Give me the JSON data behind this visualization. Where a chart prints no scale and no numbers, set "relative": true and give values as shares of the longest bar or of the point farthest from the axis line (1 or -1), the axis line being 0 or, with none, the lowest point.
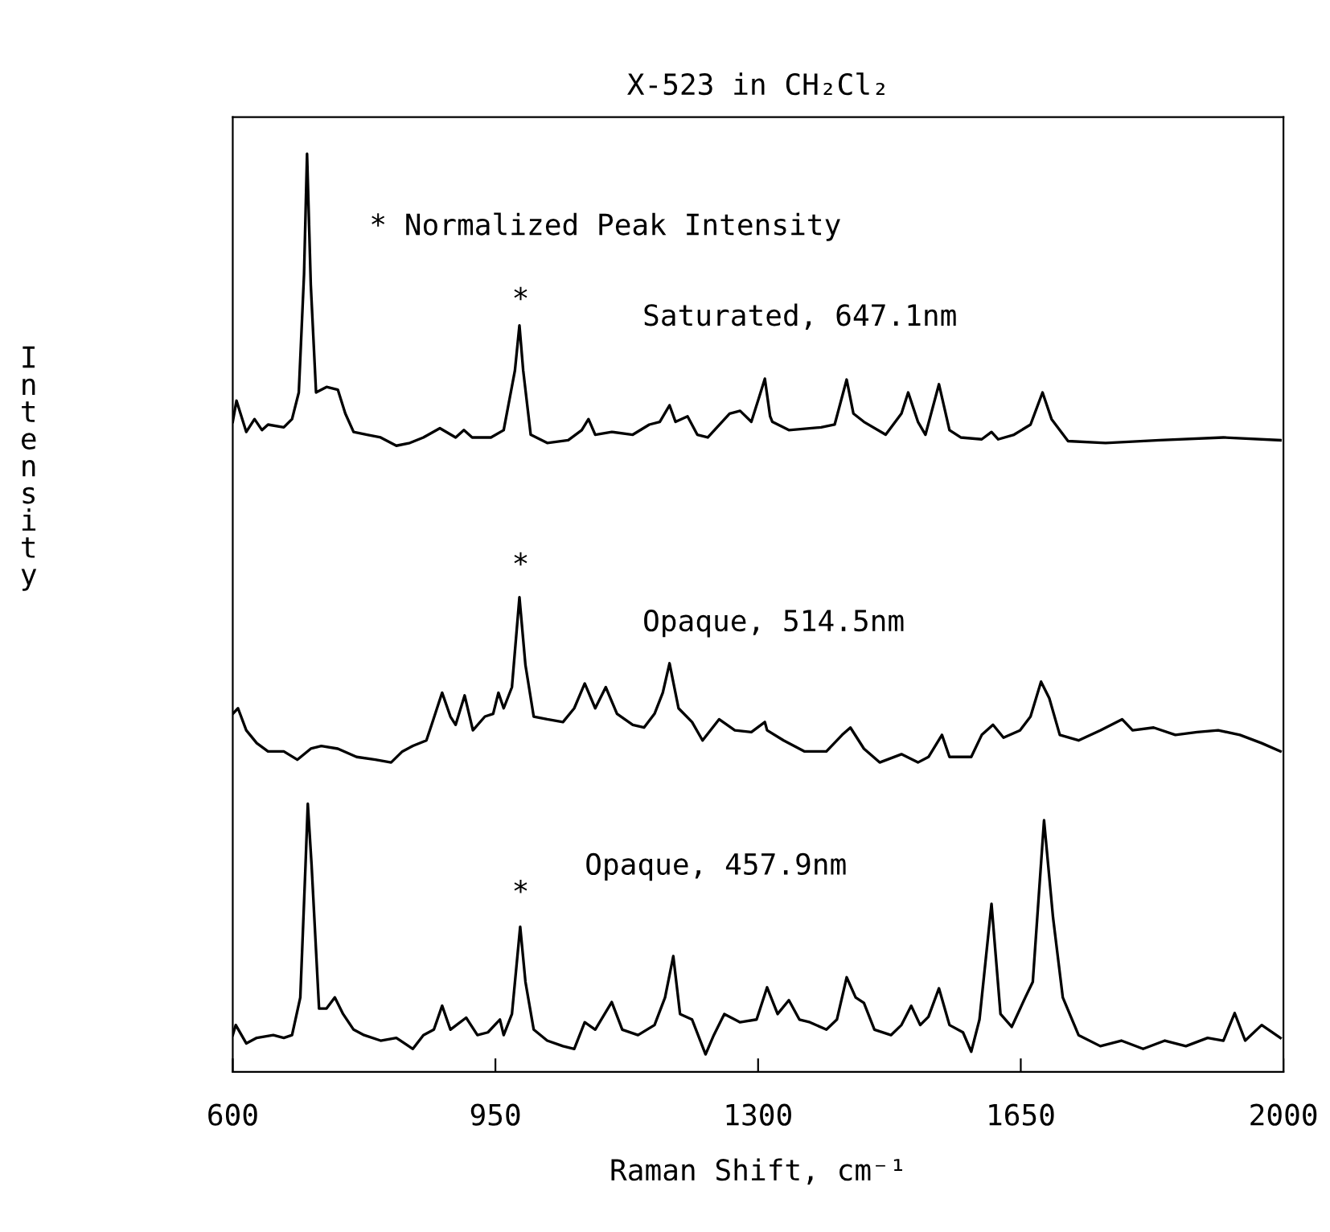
{
  "chart_data": {
    "type": "line",
    "title": "X-523 in CH₂Cl₂",
    "xlabel": "Raman Shift, cm⁻¹",
    "ylabel": "Intensity",
    "relative": true,
    "xlim": [
      600,
      2000
    ],
    "xticks": [
      600,
      950,
      1300,
      1650,
      2000
    ],
    "grid": false,
    "legend": false,
    "marker": "none",
    "line_style": "solid",
    "annotations": [
      "* Normalized Peak Intensity",
      "*",
      "*",
      "*"
    ],
    "series": [
      {
        "name": "Saturated, 647.1nm",
        "color": "#000000",
        "x": [
          600,
          605,
          618,
          629,
          639,
          647,
          668,
          679,
          688,
          695,
          699,
          704,
          711,
          725,
          740,
          750,
          761,
          779,
          797,
          818,
          836,
          854,
          876,
          897,
          908,
          919,
          944,
          961,
          976,
          982,
          987,
          997,
          1019,
          1047,
          1065,
          1074,
          1083,
          1105,
          1133,
          1155,
          1169,
          1182,
          1190,
          1206,
          1219,
          1233,
          1262,
          1276,
          1291,
          1301,
          1309,
          1316,
          1319,
          1341,
          1384,
          1402,
          1418,
          1427,
          1441,
          1470,
          1491,
          1500,
          1513,
          1523,
          1541,
          1555,
          1570,
          1598,
          1611,
          1620,
          1641,
          1663,
          1679,
          1691,
          1713,
          1763,
          1835,
          1920,
          1996
        ],
        "values": [
          0.708,
          0.731,
          0.697,
          0.711,
          0.699,
          0.705,
          0.702,
          0.711,
          0.74,
          0.869,
          1.0,
          0.857,
          0.74,
          0.746,
          0.743,
          0.717,
          0.697,
          0.694,
          0.691,
          0.682,
          0.685,
          0.691,
          0.701,
          0.691,
          0.699,
          0.691,
          0.691,
          0.699,
          0.764,
          0.813,
          0.764,
          0.694,
          0.685,
          0.688,
          0.699,
          0.711,
          0.694,
          0.697,
          0.694,
          0.705,
          0.708,
          0.726,
          0.708,
          0.714,
          0.694,
          0.691,
          0.717,
          0.72,
          0.708,
          0.734,
          0.755,
          0.714,
          0.708,
          0.699,
          0.702,
          0.705,
          0.754,
          0.717,
          0.708,
          0.694,
          0.717,
          0.74,
          0.708,
          0.694,
          0.749,
          0.699,
          0.691,
          0.689,
          0.697,
          0.689,
          0.694,
          0.705,
          0.74,
          0.711,
          0.687,
          0.685,
          0.688,
          0.691,
          0.688
        ]
      },
      {
        "name": "Opaque, 514.5nm",
        "color": "#000000",
        "x": [
          600,
          607,
          618,
          632,
          647,
          668,
          686,
          704,
          718,
          740,
          765,
          790,
          811,
          826,
          840,
          858,
          865,
          879,
          890,
          897,
          909,
          920,
          936,
          947,
          954,
          961,
          972,
          982,
          990,
          1001,
          1019,
          1040,
          1055,
          1069,
          1083,
          1097,
          1112,
          1133,
          1148,
          1162,
          1173,
          1182,
          1194,
          1212,
          1226,
          1248,
          1269,
          1291,
          1309,
          1312,
          1334,
          1362,
          1391,
          1412,
          1423,
          1441,
          1462,
          1491,
          1513,
          1527,
          1545,
          1555,
          1584,
          1598,
          1613,
          1627,
          1649,
          1663,
          1677,
          1688,
          1702,
          1727,
          1756,
          1785,
          1799,
          1827,
          1856,
          1885,
          1913,
          1942,
          1971,
          1996
        ],
        "values": [
          0.39,
          0.396,
          0.372,
          0.358,
          0.349,
          0.349,
          0.34,
          0.352,
          0.355,
          0.352,
          0.343,
          0.34,
          0.337,
          0.349,
          0.355,
          0.361,
          0.378,
          0.413,
          0.387,
          0.378,
          0.41,
          0.372,
          0.387,
          0.39,
          0.413,
          0.396,
          0.419,
          0.517,
          0.443,
          0.387,
          0.384,
          0.381,
          0.396,
          0.423,
          0.396,
          0.419,
          0.39,
          0.378,
          0.375,
          0.39,
          0.413,
          0.445,
          0.396,
          0.381,
          0.361,
          0.384,
          0.372,
          0.37,
          0.381,
          0.372,
          0.361,
          0.349,
          0.349,
          0.367,
          0.375,
          0.352,
          0.337,
          0.346,
          0.337,
          0.343,
          0.367,
          0.343,
          0.343,
          0.367,
          0.378,
          0.364,
          0.372,
          0.387,
          0.425,
          0.407,
          0.367,
          0.361,
          0.372,
          0.384,
          0.372,
          0.375,
          0.367,
          0.37,
          0.372,
          0.367,
          0.358,
          0.349
        ]
      },
      {
        "name": "Opaque, 457.9nm",
        "color": "#000000",
        "x": [
          600,
          604,
          618,
          632,
          654,
          668,
          679,
          690,
          697,
          700,
          705,
          715,
          725,
          736,
          747,
          761,
          775,
          797,
          818,
          840,
          854,
          868,
          879,
          890,
          911,
          926,
          940,
          956,
          961,
          972,
          983,
          990,
          1001,
          1019,
          1040,
          1055,
          1069,
          1083,
          1105,
          1119,
          1140,
          1162,
          1176,
          1187,
          1196,
          1212,
          1230,
          1241,
          1255,
          1276,
          1298,
          1312,
          1326,
          1341,
          1355,
          1369,
          1391,
          1405,
          1418,
          1430,
          1441,
          1455,
          1477,
          1491,
          1504,
          1516,
          1527,
          1541,
          1555,
          1573,
          1584,
          1595,
          1611,
          1623,
          1638,
          1656,
          1666,
          1681,
          1693,
          1706,
          1727,
          1756,
          1784,
          1813,
          1842,
          1870,
          1899,
          1920,
          1935,
          1949,
          1971,
          1996
        ],
        "values": [
          0.04,
          0.051,
          0.031,
          0.037,
          0.04,
          0.037,
          0.04,
          0.081,
          0.226,
          0.292,
          0.226,
          0.069,
          0.069,
          0.081,
          0.063,
          0.046,
          0.04,
          0.034,
          0.037,
          0.025,
          0.04,
          0.046,
          0.072,
          0.046,
          0.059,
          0.04,
          0.043,
          0.057,
          0.04,
          0.063,
          0.158,
          0.098,
          0.046,
          0.034,
          0.028,
          0.025,
          0.054,
          0.046,
          0.076,
          0.046,
          0.04,
          0.051,
          0.081,
          0.126,
          0.063,
          0.057,
          0.019,
          0.04,
          0.063,
          0.054,
          0.057,
          0.092,
          0.063,
          0.078,
          0.057,
          0.054,
          0.046,
          0.057,
          0.103,
          0.081,
          0.075,
          0.046,
          0.04,
          0.051,
          0.072,
          0.051,
          0.06,
          0.091,
          0.051,
          0.043,
          0.022,
          0.057,
          0.183,
          0.063,
          0.049,
          0.081,
          0.098,
          0.274,
          0.168,
          0.081,
          0.04,
          0.028,
          0.034,
          0.025,
          0.034,
          0.028,
          0.037,
          0.034,
          0.064,
          0.034,
          0.051,
          0.037
        ]
      }
    ]
  }
}
